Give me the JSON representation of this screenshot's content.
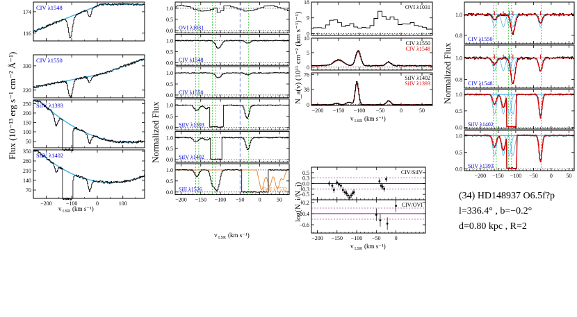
{
  "star": {
    "title": "(34)  HD148937  O6.5f?p",
    "coords": "l=336.4°  ,  b=−0.2°",
    "distance": "d=0.80 kpc  ,  R=2"
  },
  "colors": {
    "blue_label": "#0000cc",
    "red_label": "#dd0000",
    "continuum": "#3fb0e6",
    "model": "#dd0000",
    "orange": "#f08020",
    "green_mark": "#22bb22",
    "dashed_blue": "#6b7fe0",
    "purple": "#800080"
  },
  "chart_data": [
    {
      "id": "flux",
      "type": "line",
      "ylabel": "Flux  (10⁻¹³ erg s⁻¹ cm⁻² Å⁻¹)",
      "xlabel": "v_LSR (km s⁻¹)",
      "xlim": [
        -250,
        185
      ],
      "xticks": [
        -200,
        -100,
        0,
        100
      ],
      "panels": [
        {
          "label": "CIV λ1548",
          "ylim": [
            95,
            200
          ],
          "yticks": [
            116,
            174
          ]
        },
        {
          "label": "CIV λ1550",
          "ylim": [
            185,
            380
          ],
          "yticks": [
            220,
            330
          ]
        },
        {
          "label": "SiIV λ1393",
          "ylim": [
            15,
            270
          ],
          "yticks": [
            50,
            100,
            150,
            200,
            250
          ]
        },
        {
          "label": "SiIV λ1402",
          "ylim": [
            10,
            360
          ],
          "yticks": [
            70,
            140,
            210,
            280,
            350
          ]
        }
      ]
    },
    {
      "id": "normalized",
      "type": "line",
      "ylabel": "Normalized Flux",
      "xlabel": "v_LSR (km s⁻¹)",
      "xlim": [
        -215,
        75
      ],
      "xticks": [
        -200,
        -150,
        -100,
        -50,
        0,
        50
      ],
      "yticks": [
        0.0,
        0.5,
        1.0
      ],
      "green_lines": [
        -163,
        -155,
        -120,
        -112,
        -28
      ],
      "blue_dashed": -50,
      "panels": [
        {
          "label": "OVI λ1031"
        },
        {
          "label": "CIV λ1548"
        },
        {
          "label": "CIV λ1550"
        },
        {
          "label": "SiIV λ1393"
        },
        {
          "label": "SiIV λ1402"
        },
        {
          "label": "SiII λ1526",
          "label2": "FeII λ1532"
        }
      ]
    },
    {
      "id": "column_density",
      "type": "line",
      "ylabel": "N_a(v)  (10¹¹ cm⁻² (km s⁻¹)⁻¹)",
      "xlabel": "v_LSR (km s⁻¹)",
      "xlim": [
        -215,
        75
      ],
      "xticks": [
        -200,
        -150,
        -100,
        -50,
        0,
        50
      ],
      "panels": [
        {
          "labels": [
            "OVI λ1031"
          ],
          "ylim": [
            -1,
            18
          ],
          "yticks": [
            0,
            9,
            18
          ]
        },
        {
          "labels": [
            "CIV λ1550",
            "CIV λ1548"
          ],
          "ylim": [
            -1,
            10
          ],
          "yticks": [
            0,
            5,
            10
          ]
        },
        {
          "labels": [
            "SiIV λ1402",
            "SiIV λ1393"
          ],
          "ylim": [
            -2,
            80
          ],
          "yticks": [
            0,
            38,
            76
          ]
        }
      ]
    },
    {
      "id": "ratios",
      "type": "scatter",
      "ylabel": "log(N_i/N_j)",
      "xlabel": "v_LSR (km s⁻¹)",
      "xlim": [
        -215,
        75
      ],
      "xticks": [
        -200,
        -150,
        -100,
        -50,
        0
      ],
      "panels": [
        {
          "label": "CIV/SiIV",
          "ylim": [
            -0.75,
            0.75
          ],
          "yticks": [
            -0.5,
            -0.25,
            0.0,
            0.25,
            0.5
          ],
          "refline": 0.0,
          "points": [
            {
              "x": -170,
              "y": 0.0
            },
            {
              "x": -162,
              "y": -0.1
            },
            {
              "x": -158,
              "y": -0.3
            },
            {
              "x": -150,
              "y": 0.05
            },
            {
              "x": -145,
              "y": -0.05
            },
            {
              "x": -140,
              "y": -0.1
            },
            {
              "x": -135,
              "y": -0.3
            },
            {
              "x": -130,
              "y": -0.4
            },
            {
              "x": -126,
              "y": -0.45
            },
            {
              "x": -122,
              "y": -0.55
            },
            {
              "x": -118,
              "y": -0.65
            },
            {
              "x": -114,
              "y": -0.55
            },
            {
              "x": -110,
              "y": -0.45
            },
            {
              "x": -107,
              "y": -0.4
            },
            {
              "x": -42,
              "y": 0.1
            },
            {
              "x": -38,
              "y": -0.1
            },
            {
              "x": -34,
              "y": -0.15
            },
            {
              "x": -30,
              "y": -0.25
            },
            {
              "x": -25,
              "y": 0.2
            }
          ]
        },
        {
          "label": "CIV/OVI",
          "ylim": [
            -0.75,
            -0.15
          ],
          "yticks": [
            -0.6,
            -0.4,
            -0.2
          ],
          "refline": -0.4,
          "points": [
            {
              "x": -50,
              "y": -0.42
            },
            {
              "x": -40,
              "y": -0.52
            },
            {
              "x": -22,
              "y": -0.58
            },
            {
              "x": 0,
              "y": -0.26
            }
          ]
        }
      ]
    },
    {
      "id": "normalized_fit",
      "type": "line",
      "ylabel": "Normalized Flux",
      "xlim": [
        -245,
        65
      ],
      "xticks": [
        -200,
        -150,
        -100,
        -50,
        0,
        50
      ],
      "green_lines": [
        -163,
        -155,
        -120,
        -112,
        -28
      ],
      "panels": [
        {
          "label": "CIV λ1550",
          "ylim": [
            0.72,
            1.12
          ],
          "yticks": [
            0.8,
            1.0
          ]
        },
        {
          "label": "CIV λ1548",
          "ylim": [
            0.72,
            1.12
          ],
          "yticks": [
            0.8,
            1.0
          ]
        },
        {
          "label": "SiIV λ1402",
          "ylim": [
            -0.05,
            1.15
          ],
          "yticks": [
            0.0,
            0.5,
            1.0
          ]
        },
        {
          "label": "SiIV λ1393",
          "ylim": [
            -0.05,
            1.15
          ],
          "yticks": [
            0.0,
            0.5,
            1.0
          ]
        }
      ]
    }
  ]
}
